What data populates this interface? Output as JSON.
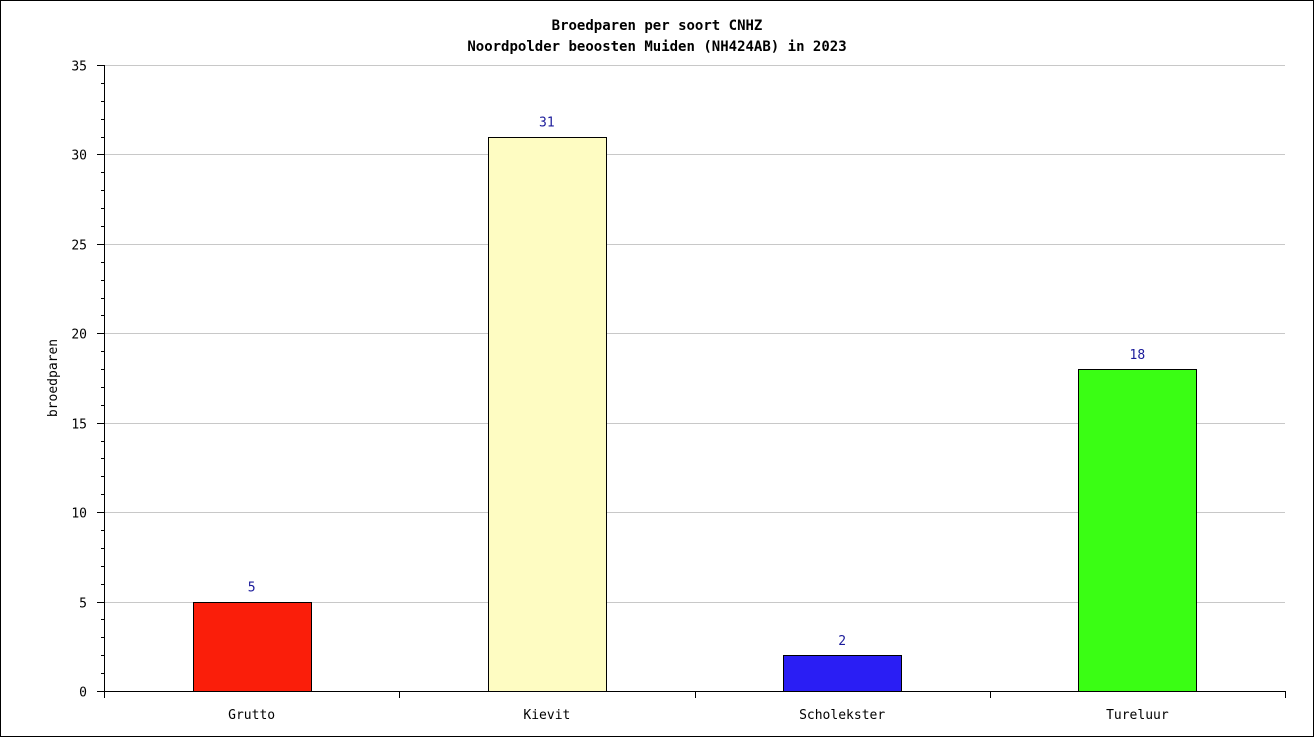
{
  "chart_data": {
    "type": "bar",
    "title": "Broedparen per soort CNHZ",
    "subtitle": "Noordpolder beoosten Muiden (NH424AB) in 2023",
    "xlabel": "",
    "ylabel": "broedparen",
    "ylim": [
      0,
      35
    ],
    "yticks": [
      0,
      5,
      10,
      15,
      20,
      25,
      30,
      35
    ],
    "grid": true,
    "categories": [
      "Grutto",
      "Kievit",
      "Scholekster",
      "Tureluur"
    ],
    "values": [
      5,
      31,
      2,
      18
    ],
    "colors": [
      "#fa1e0a",
      "#fefcc2",
      "#2a1ef4",
      "#3afe14"
    ],
    "value_label_color": "#1a1a9a"
  }
}
